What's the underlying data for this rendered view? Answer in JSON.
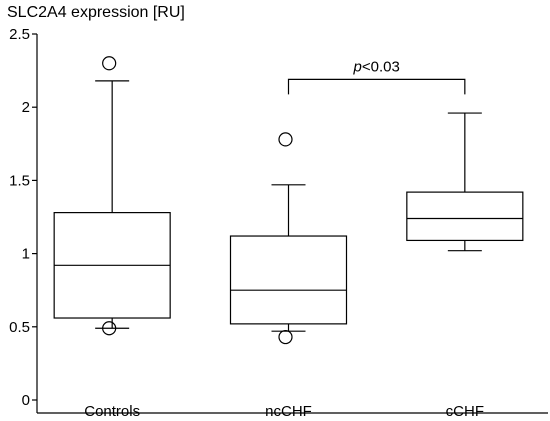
{
  "chart_data": {
    "type": "box",
    "title": "SLC2A4 expression [RU]",
    "xlabel": "",
    "ylabel": "",
    "ylim": [
      0,
      2.5
    ],
    "yticks": [
      {
        "value": 0,
        "label": "0"
      },
      {
        "value": 0.5,
        "label": "0.5"
      },
      {
        "value": 1,
        "label": "1"
      },
      {
        "value": 1.5,
        "label": "1.5"
      },
      {
        "value": 2,
        "label": "2"
      },
      {
        "value": 2.5,
        "label": "2.5"
      }
    ],
    "grid": false,
    "categories": [
      "Controls",
      "ncCHF",
      "cCHF"
    ],
    "boxes": [
      {
        "name": "Controls",
        "whisker_low": 0.49,
        "q1": 0.56,
        "median": 0.92,
        "q3": 1.28,
        "whisker_high": 2.18,
        "outliers": [
          2.3,
          0.49
        ]
      },
      {
        "name": "ncCHF",
        "whisker_low": 0.47,
        "q1": 0.52,
        "median": 0.75,
        "q3": 1.12,
        "whisker_high": 1.47,
        "outliers": [
          1.78,
          0.43
        ]
      },
      {
        "name": "cCHF",
        "whisker_low": 1.02,
        "q1": 1.09,
        "median": 1.24,
        "q3": 1.42,
        "whisker_high": 1.96,
        "outliers": []
      }
    ],
    "annotation": {
      "between": [
        "ncCHF",
        "cCHF"
      ],
      "p_symbol": "p",
      "text": "<0.03",
      "level": 2.19
    }
  }
}
